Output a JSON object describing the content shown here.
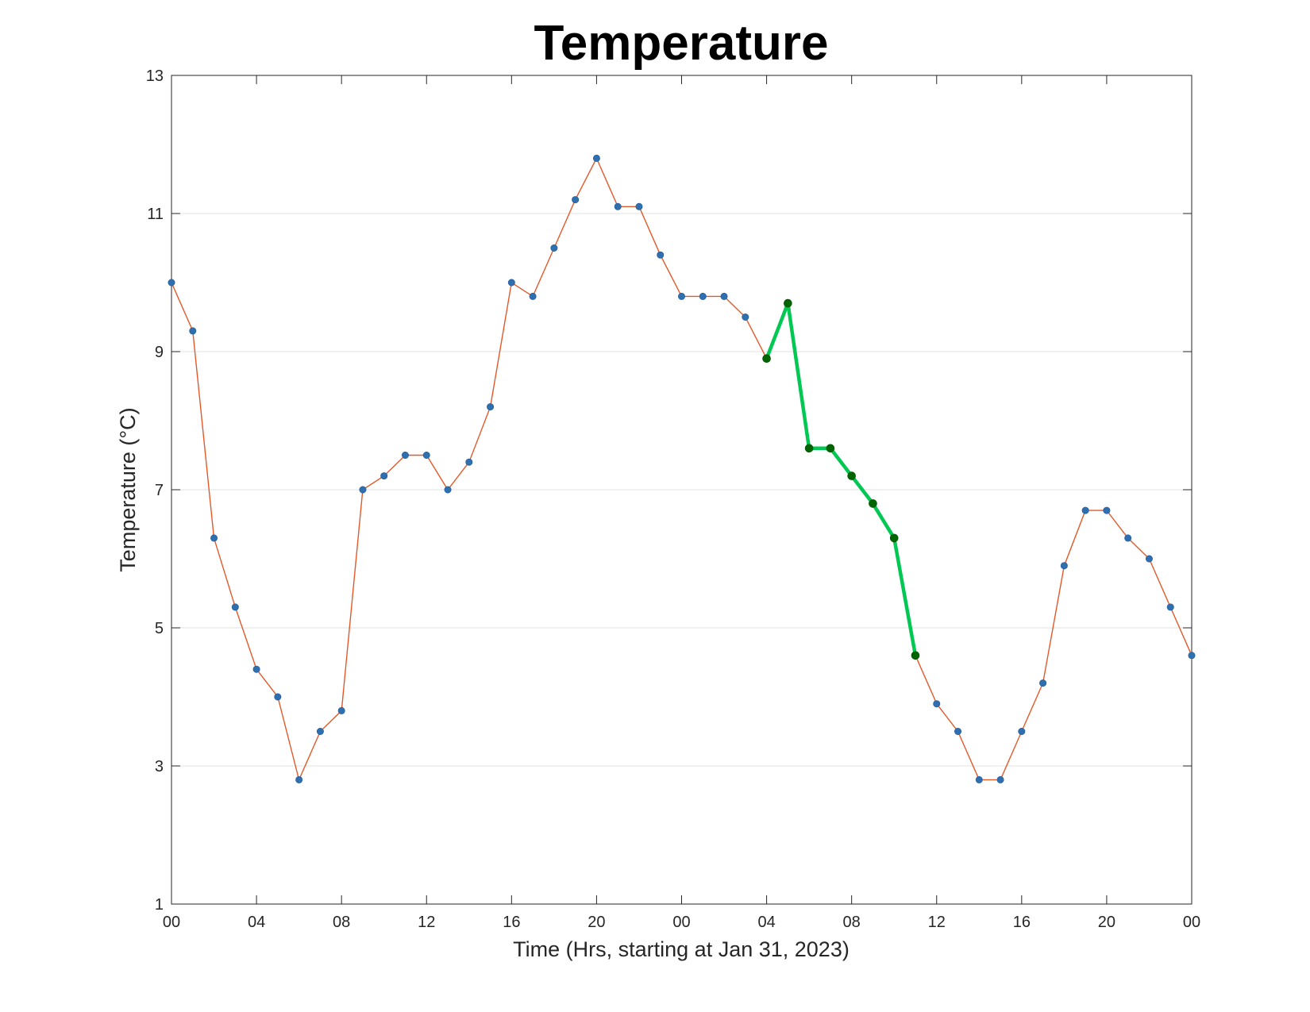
{
  "chart_data": {
    "type": "line",
    "title": "Temperature",
    "xlabel": "Time (Hrs, starting at Jan 31, 2023)",
    "ylabel": "Temperature (°C)",
    "ylim": [
      1,
      13
    ],
    "xlim": [
      "2023-01-31T00:00",
      "2023-02-02T00:00"
    ],
    "grid": "horizontal",
    "yticks": [
      "1",
      "3",
      "5",
      "7",
      "9",
      "11",
      "13"
    ],
    "xticks": [
      "00",
      "04",
      "08",
      "12",
      "16",
      "20",
      "00",
      "04",
      "08",
      "12",
      "16",
      "20",
      "00"
    ],
    "colors": {
      "line": "#e2592a",
      "marker": "#2f6fb0",
      "highlight_line": "#00c853",
      "highlight_marker": "#006400"
    },
    "series": [
      {
        "x": [
          "2023-01-31T00:00",
          "2023-01-31T01:00",
          "2023-01-31T02:00",
          "2023-01-31T03:00",
          "2023-01-31T04:00",
          "2023-01-31T05:00",
          "2023-01-31T06:00",
          "2023-01-31T07:00",
          "2023-01-31T08:00",
          "2023-01-31T09:00",
          "2023-01-31T10:00",
          "2023-01-31T11:00",
          "2023-01-31T12:00",
          "2023-01-31T13:00",
          "2023-01-31T14:00",
          "2023-01-31T15:00",
          "2023-01-31T16:00",
          "2023-01-31T17:00",
          "2023-01-31T18:00",
          "2023-01-31T19:00",
          "2023-01-31T20:00",
          "2023-01-31T21:00",
          "2023-01-31T22:00",
          "2023-01-31T23:00",
          "2023-02-01T00:00",
          "2023-02-01T01:00",
          "2023-02-01T02:00",
          "2023-02-01T03:00",
          "2023-02-01T04:00",
          "2023-02-01T05:00",
          "2023-02-01T06:00",
          "2023-02-01T07:00",
          "2023-02-01T08:00",
          "2023-02-01T09:00",
          "2023-02-01T10:00",
          "2023-02-01T11:00",
          "2023-02-01T12:00",
          "2023-02-01T13:00",
          "2023-02-01T14:00",
          "2023-02-01T15:00",
          "2023-02-01T16:00",
          "2023-02-01T17:00",
          "2023-02-01T18:00",
          "2023-02-01T19:00",
          "2023-02-01T20:00",
          "2023-02-01T21:00",
          "2023-02-01T22:00",
          "2023-02-01T23:00",
          "2023-02-02T00:00"
        ],
        "values": [
          10.0,
          9.3,
          6.3,
          5.3,
          4.4,
          4.0,
          2.8,
          3.5,
          3.8,
          7.0,
          7.2,
          7.5,
          7.5,
          7.0,
          7.4,
          8.2,
          10.0,
          9.8,
          10.5,
          11.2,
          11.8,
          11.1,
          11.1,
          10.4,
          9.8,
          9.8,
          9.8,
          9.5,
          8.9,
          9.7,
          7.6,
          7.6,
          7.2,
          6.8,
          6.3,
          4.6,
          3.9,
          3.5,
          2.8,
          2.8,
          3.5,
          4.2,
          5.9,
          6.7,
          6.7,
          6.3,
          6.0,
          5.3,
          4.6
        ]
      },
      {
        "x": [
          "2023-02-01T04:00",
          "2023-02-01T05:00",
          "2023-02-01T06:00",
          "2023-02-01T07:00",
          "2023-02-01T08:00",
          "2023-02-01T09:00",
          "2023-02-01T10:00",
          "2023-02-01T11:00"
        ],
        "values": [
          8.9,
          9.7,
          7.6,
          7.6,
          7.2,
          6.8,
          6.3,
          4.6
        ]
      }
    ]
  }
}
